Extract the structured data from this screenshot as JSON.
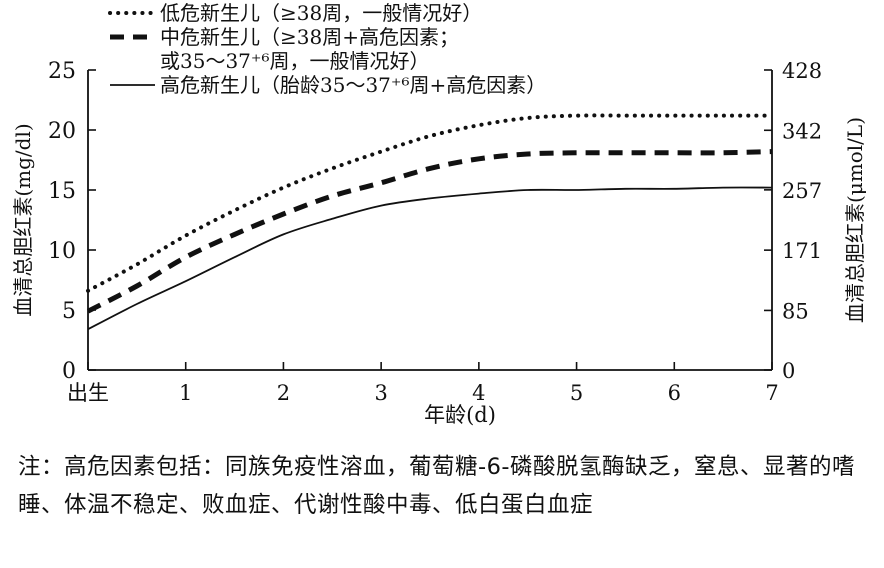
{
  "chart_data": {
    "type": "line",
    "xlabel": "年龄(d)",
    "ylabel_left": "血清总胆红素(mg/dl)",
    "ylabel_right": "血清总胆红素(μmol/L)",
    "x_ticks": [
      "出生",
      "1",
      "2",
      "3",
      "4",
      "5",
      "6",
      "7"
    ],
    "xlim": [
      0,
      7
    ],
    "y_left_ticks": [
      "0",
      "5",
      "10",
      "15",
      "20",
      "25"
    ],
    "ylim_left": [
      0,
      25
    ],
    "y_right_ticks": [
      "0",
      "85",
      "171",
      "257",
      "342",
      "428"
    ],
    "ylim_right": [
      0,
      428
    ],
    "grid": false,
    "legend_position": "top-left",
    "legend": [
      {
        "lines": [
          "低危新生儿（≥38周，一般情况好）"
        ],
        "style": "dotted"
      },
      {
        "lines": [
          "中危新生儿（≥38周+高危因素；",
          "或35～37⁺⁶周，一般情况好）"
        ],
        "style": "dashed"
      },
      {
        "lines": [
          "高危新生儿（胎龄35～37⁺⁶周+高危因素）"
        ],
        "style": "solid"
      }
    ],
    "series": [
      {
        "name": "低危新生儿（≥38周，一般情况好）",
        "style": "dotted",
        "x": [
          0,
          0.5,
          1,
          1.5,
          2,
          2.5,
          3,
          3.5,
          4,
          4.5,
          5,
          5.5,
          6,
          6.5,
          7
        ],
        "values": [
          6.6,
          8.8,
          11.2,
          13.3,
          15.2,
          16.8,
          18.2,
          19.5,
          20.4,
          21.0,
          21.2,
          21.2,
          21.2,
          21.2,
          21.2
        ]
      },
      {
        "name": "中危新生儿（≥38周+高危因素；或35～37⁺⁶周，一般情况好）",
        "style": "dashed",
        "x": [
          0,
          0.5,
          1,
          1.5,
          2,
          2.5,
          3,
          3.5,
          4,
          4.5,
          5,
          5.5,
          6,
          6.5,
          7
        ],
        "values": [
          4.9,
          7.0,
          9.4,
          11.3,
          13.0,
          14.5,
          15.6,
          16.8,
          17.6,
          18.0,
          18.1,
          18.1,
          18.1,
          18.1,
          18.2
        ]
      },
      {
        "name": "高危新生儿（胎龄35～37⁺⁶周+高危因素）",
        "style": "solid",
        "x": [
          0,
          0.5,
          1,
          1.5,
          2,
          2.5,
          3,
          3.5,
          4,
          4.5,
          5,
          5.5,
          6,
          6.5,
          7
        ],
        "values": [
          3.4,
          5.5,
          7.4,
          9.4,
          11.3,
          12.6,
          13.7,
          14.3,
          14.7,
          15.0,
          15.0,
          15.1,
          15.1,
          15.2,
          15.2
        ]
      }
    ]
  },
  "note": {
    "text": "注：高危因素包括：同族免疫性溶血，葡萄糖-6-磷酸脱氢酶缺乏，窒息、显著的嗜睡、体温不稳定、败血症、代谢性酸中毒、低白蛋白血症"
  }
}
